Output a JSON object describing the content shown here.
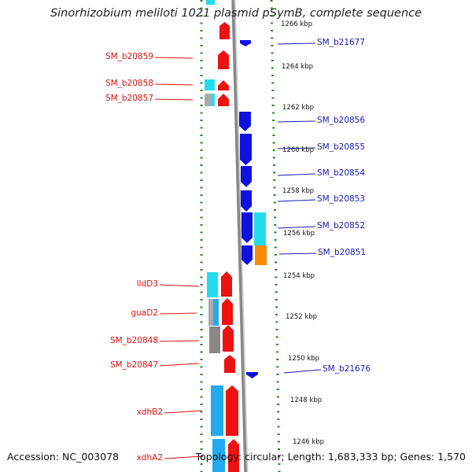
{
  "header": {
    "title": "Sinorhizobium meliloti 1021 plasmid pSymB, complete sequence"
  },
  "footer": {
    "accession": "Accession: NC_003078",
    "summary": "Topology: circular; Length: 1,683,333 bp; Genes: 1,570"
  },
  "colors": {
    "forward_gene": "#ee1111",
    "reverse_gene": "#1111dd",
    "cds_cyan": "#22ddee",
    "cds_skyblue": "#22aaee",
    "cds_gray": "#888888",
    "cds_silver": "#aaaaaa",
    "cds_orange": "#ff8800",
    "backbone": "#888888",
    "tick_green": "#228822",
    "label_left": "#dd1111",
    "label_right": "#1a1ab0"
  },
  "ticks": {
    "t1266": "1266 kbp",
    "t1264": "1264 kbp",
    "t1262": "1262 kbp",
    "t1260": "1260 kbp",
    "t1258": "1258 kbp",
    "t1256": "1256 kbp",
    "t1254": "1254 kbp",
    "t1252": "1252 kbp",
    "t1250": "1250 kbp",
    "t1248": "1248 kbp",
    "t1246": "1246 kbp"
  },
  "genes_left": {
    "g1": "SM_b20859",
    "g2": "SM_b20858",
    "g3": "SM_b20857",
    "g4": "lldD3",
    "g5": "guaD2",
    "g6": "SM_b20848",
    "g7": "SM_b20847",
    "g8": "xdhB2",
    "g9": "xdhA2"
  },
  "genes_right": {
    "g1": "SM_b21677",
    "g2": "SM_b20856",
    "g3": "SM_b20855",
    "g4": "SM_b20854",
    "g5": "SM_b20853",
    "g6": "SM_b20852",
    "g7": "SM_b20851",
    "g8": "SM_b21676"
  }
}
